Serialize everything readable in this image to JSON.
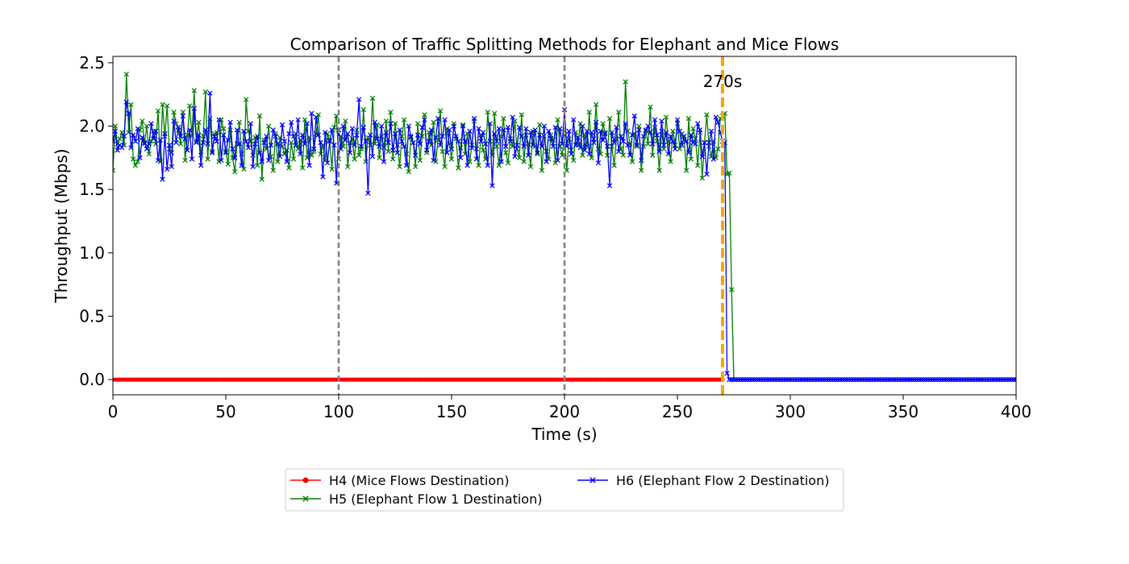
{
  "chart_data": {
    "type": "line",
    "title": "Comparison of Traffic Splitting Methods for Elephant and Mice Flows",
    "xlabel": "Time (s)",
    "ylabel": "Throughput (Mbps)",
    "xlim": [
      0,
      400
    ],
    "ylim": [
      -0.12,
      2.55
    ],
    "xticks": [
      0,
      50,
      100,
      150,
      200,
      250,
      300,
      350,
      400
    ],
    "xtick_labels": [
      "0",
      "50",
      "100",
      "150",
      "200",
      "250",
      "300",
      "350",
      "400"
    ],
    "yticks": [
      0.0,
      0.5,
      1.0,
      1.5,
      2.0,
      2.5
    ],
    "ytick_labels": [
      "0.0",
      "0.5",
      "1.0",
      "1.5",
      "2.0",
      "2.5"
    ],
    "grid": false,
    "legend_position": "below-center",
    "vertical_markers": [
      {
        "x": 100,
        "color": "#808080",
        "style": "dashed"
      },
      {
        "x": 200,
        "color": "#808080",
        "style": "dashed"
      },
      {
        "x": 270,
        "color": "#ffa500",
        "style": "dashed",
        "label": "270s"
      }
    ],
    "series": [
      {
        "name": "H4 (Mice Flows Destination)",
        "color": "#ff0000",
        "marker": "dot",
        "values_description_note": "",
        "segments": [
          {
            "x_start": 0,
            "x_end": 270,
            "step": 1,
            "value": 0.0
          }
        ]
      },
      {
        "name": "H5 (Elephant Flow 1 Destination)",
        "color": "#008000",
        "marker": "x",
        "x_start": 0,
        "step": 1,
        "values": [
          1.65,
          2.0,
          1.86,
          1.9,
          1.95,
          1.85,
          2.41,
          1.95,
          2.17,
          1.74,
          1.69,
          1.72,
          1.97,
          2.04,
          1.86,
          2.0,
          1.78,
          1.88,
          1.96,
          1.86,
          2.12,
          1.72,
          2.17,
          1.92,
          2.16,
          1.82,
          1.79,
          2.11,
          2.02,
          1.97,
          1.86,
          2.11,
          1.73,
          1.93,
          2.16,
          1.92,
          2.28,
          1.88,
          2.03,
          1.77,
          1.92,
          2.27,
          1.74,
          2.06,
          1.8,
          1.94,
          1.95,
          1.72,
          2.05,
          1.98,
          1.8,
          1.7,
          1.97,
          1.75,
          1.64,
          1.86,
          2.03,
          1.78,
          1.66,
          2.21,
          1.96,
          1.88,
          1.77,
          1.91,
          1.69,
          2.08,
          1.58,
          1.89,
          1.82,
          2.0,
          1.76,
          1.65,
          1.94,
          1.72,
          1.91,
          1.84,
          1.78,
          1.81,
          1.67,
          1.87,
          1.74,
          1.94,
          1.82,
          1.89,
          1.67,
          2.05,
          1.75,
          1.91,
          1.77,
          1.8,
          1.94,
          2.09,
          1.78,
          1.85,
          1.73,
          1.94,
          1.89,
          1.66,
          1.99,
          2.08,
          1.74,
          1.92,
          1.84,
          2.04,
          1.68,
          1.87,
          1.9,
          1.74,
          1.97,
          1.77,
          1.82,
          2.13,
          1.72,
          1.91,
          1.85,
          2.22,
          1.86,
          2.01,
          1.75,
          1.92,
          1.83,
          2.04,
          1.8,
          2.11,
          1.74,
          2.02,
          1.85,
          1.68,
          1.92,
          2.05,
          1.78,
          1.64,
          1.91,
          1.87,
          1.68,
          2.02,
          1.73,
          1.92,
          2.09,
          1.79,
          1.95,
          1.85,
          2.03,
          1.72,
          1.89,
          2.12,
          1.8,
          1.68,
          1.98,
          1.86,
          1.74,
          2.02,
          1.9,
          1.67,
          1.83,
          2.01,
          1.78,
          1.94,
          1.72,
          1.85,
          2.04,
          1.82,
          1.69,
          1.93,
          1.81,
          1.74,
          2.11,
          1.88,
          1.77,
          2.1,
          1.84,
          1.69,
          1.92,
          2.06,
          1.79,
          1.71,
          1.9,
          1.84,
          2.04,
          1.82,
          1.75,
          2.09,
          1.72,
          1.93,
          1.86,
          1.68,
          1.96,
          1.84,
          1.78,
          2.01,
          1.65,
          1.92,
          1.8,
          1.74,
          1.93,
          1.89,
          1.71,
          2.05,
          1.84,
          1.77,
          1.93,
          1.65,
          1.9,
          1.81,
          1.73,
          1.95,
          1.85,
          2.02,
          1.77,
          1.93,
          1.84,
          2.11,
          1.75,
          1.9,
          2.17,
          1.82,
          1.78,
          2.02,
          1.95,
          1.77,
          2.06,
          1.84,
          1.69,
          1.9,
          2.11,
          1.82,
          1.77,
          2.35,
          1.96,
          1.86,
          1.72,
          1.94,
          1.84,
          2.0,
          1.65,
          1.84,
          1.96,
          1.86,
          2.15,
          1.77,
          1.99,
          1.88,
          1.65,
          1.96,
          1.82,
          2.07,
          1.88,
          1.72,
          1.96,
          1.85,
          2.02,
          1.82,
          1.94,
          1.89,
          1.65,
          2.06,
          1.74,
          1.98,
          1.9,
          1.69,
          1.95,
          1.59,
          1.87,
          2.09,
          1.84,
          1.76,
          1.88,
          1.75,
          1.82,
          2.06,
          2.08,
          2.1,
          1.62,
          1.63,
          0.71,
          0.0
        ]
      },
      {
        "name": "H6 (Elephant Flow 2 Destination)",
        "color": "#0000ff",
        "marker": "x",
        "x_start": 0,
        "step": 1,
        "values": [
          1.88,
          1.96,
          1.81,
          1.85,
          1.83,
          1.92,
          2.19,
          2.1,
          1.83,
          1.93,
          1.88,
          1.98,
          1.75,
          1.91,
          1.87,
          1.82,
          1.86,
          2.02,
          1.9,
          1.96,
          1.73,
          1.89,
          1.58,
          1.94,
          1.66,
          1.85,
          1.68,
          2.04,
          1.87,
          1.99,
          1.92,
          2.08,
          1.9,
          1.81,
          1.97,
          1.74,
          2.14,
          1.87,
          1.93,
          1.69,
          1.87,
          1.97,
          1.86,
          2.26,
          1.79,
          1.92,
          1.88,
          2.05,
          1.73,
          1.93,
          1.79,
          1.89,
          2.03,
          1.82,
          1.75,
          1.97,
          1.86,
          1.69,
          1.96,
          1.88,
          1.83,
          2.02,
          1.68,
          1.86,
          1.92,
          1.79,
          1.72,
          1.87,
          1.92,
          1.73,
          1.85,
          1.97,
          1.92,
          1.86,
          1.76,
          2.01,
          1.88,
          1.72,
          1.94,
          2.03,
          1.92,
          1.85,
          2.05,
          1.78,
          1.93,
          1.86,
          2.02,
          1.69,
          2.1,
          1.82,
          2.07,
          1.93,
          1.87,
          1.6,
          1.95,
          1.71,
          1.88,
          1.97,
          1.85,
          1.55,
          1.97,
          1.82,
          2.0,
          1.89,
          1.94,
          1.79,
          1.98,
          1.85,
          1.93,
          2.21,
          1.84,
          1.99,
          1.88,
          1.47,
          1.93,
          1.76,
          2.03,
          1.9,
          1.84,
          2.0,
          1.72,
          1.95,
          1.87,
          2.02,
          1.81,
          1.94,
          1.79,
          1.97,
          1.88,
          1.84,
          1.69,
          2.0,
          1.92,
          1.87,
          1.77,
          1.93,
          1.86,
          1.99,
          2.05,
          1.81,
          1.88,
          1.97,
          1.73,
          1.91,
          2.06,
          1.85,
          1.92,
          2.05,
          1.79,
          1.97,
          1.82,
          2.0,
          1.92,
          1.88,
          1.75,
          2.0,
          1.88,
          1.69,
          1.96,
          1.83,
          2.06,
          1.74,
          1.98,
          1.88,
          1.95,
          1.86,
          1.69,
          2.02,
          1.53,
          1.94,
          1.88,
          1.98,
          1.72,
          1.97,
          1.84,
          1.99,
          1.88,
          2.07,
          1.76,
          1.85,
          1.99,
          1.92,
          1.84,
          1.98,
          1.77,
          1.95,
          1.85,
          1.97,
          1.79,
          1.93,
          1.84,
          2.0,
          1.72,
          1.96,
          1.9,
          1.84,
          1.99,
          1.73,
          1.98,
          1.86,
          2.13,
          1.84,
          1.96,
          1.78,
          2.05,
          1.85,
          1.91,
          1.83,
          2.0,
          1.81,
          1.96,
          1.78,
          1.95,
          1.87,
          2.03,
          1.71,
          1.96,
          1.89,
          1.94,
          1.84,
          1.53,
          1.95,
          1.87,
          1.99,
          1.8,
          1.92,
          1.88,
          2.02,
          1.85,
          1.77,
          1.93,
          2.08,
          1.85,
          1.97,
          1.73,
          1.92,
          1.97,
          2.0,
          1.95,
          1.86,
          2.05,
          1.93,
          1.8,
          2.04,
          1.85,
          1.95,
          1.78,
          1.92,
          1.88,
          1.82,
          2.05,
          1.96,
          1.85,
          1.92,
          1.88,
          1.79,
          1.93,
          1.87,
          1.86,
          2.02,
          1.97,
          1.76,
          1.87,
          1.62,
          1.87,
          1.96,
          1.74,
          2.07,
          2.03,
          1.95,
          1.88,
          1.87,
          0.05,
          0.0
        ],
        "tail": {
          "x_start": 273,
          "x_end": 400,
          "step": 1,
          "value": 0.0
        }
      }
    ]
  }
}
